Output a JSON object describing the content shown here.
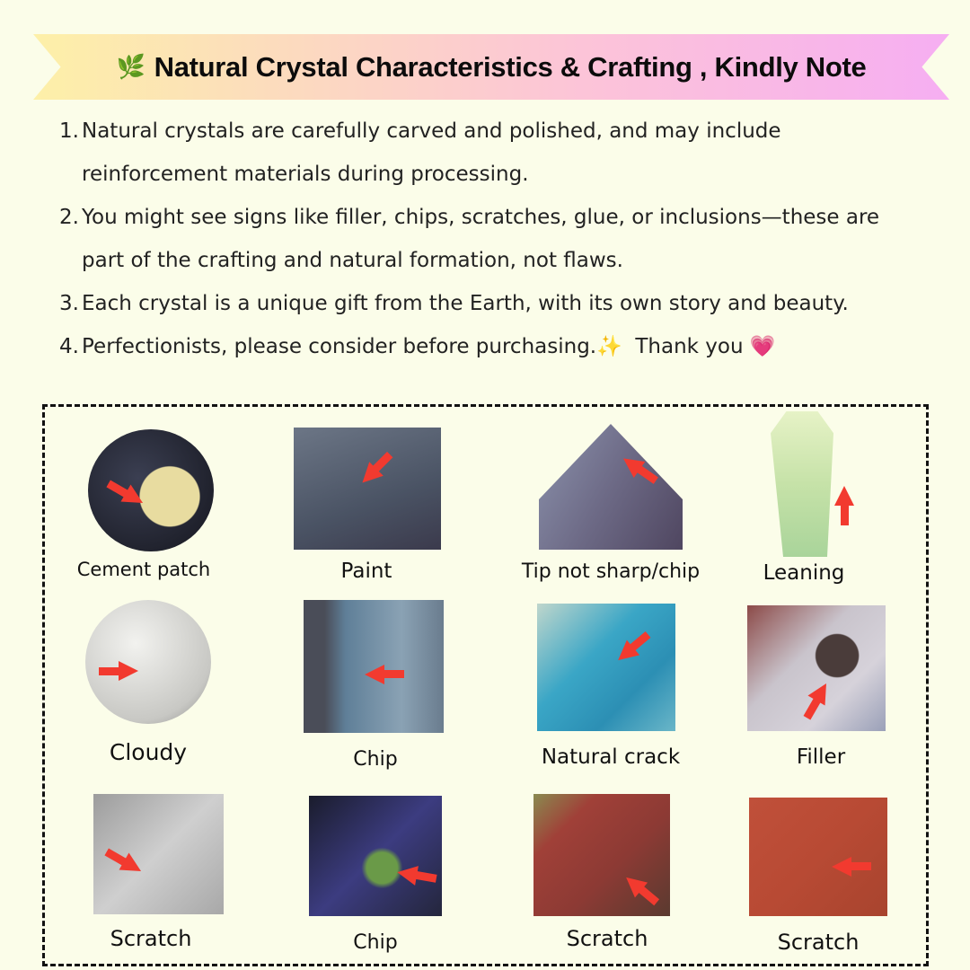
{
  "banner": {
    "icon": "leaf-sprig-icon",
    "title": "Natural Crystal Characteristics & Crafting , Kindly Note"
  },
  "notes": [
    {
      "num": "1.",
      "text": "Natural crystals are carefully carved and polished, and may include reinforcement materials during processing."
    },
    {
      "num": "2.",
      "text": "You might see signs like filler, chips, scratches, glue, or inclusions—these are part of the crafting and natural formation, not flaws."
    },
    {
      "num": "3.",
      "text": "Each crystal is a unique gift from the Earth, with its own story and beauty."
    },
    {
      "num": "4.",
      "text": "Perfectionists, please consider before purchasing.",
      "sparkle": "✨",
      "thanks": "Thank you",
      "heart": "💗"
    }
  ],
  "examples": [
    {
      "label": "Cement patch"
    },
    {
      "label": "Paint"
    },
    {
      "label": "Tip not sharp/chip"
    },
    {
      "label": "Leaning"
    },
    {
      "label": "Cloudy"
    },
    {
      "label": "Chip"
    },
    {
      "label": "Natural crack"
    },
    {
      "label": "Filler"
    },
    {
      "label": "Scratch"
    },
    {
      "label": "Chip"
    },
    {
      "label": "Scratch"
    },
    {
      "label": "Scratch"
    }
  ],
  "colors": {
    "background": "#fbfde9",
    "arrow": "#f23a2f",
    "banner_start": "#fdf0a8",
    "banner_end": "#f6aef2"
  }
}
